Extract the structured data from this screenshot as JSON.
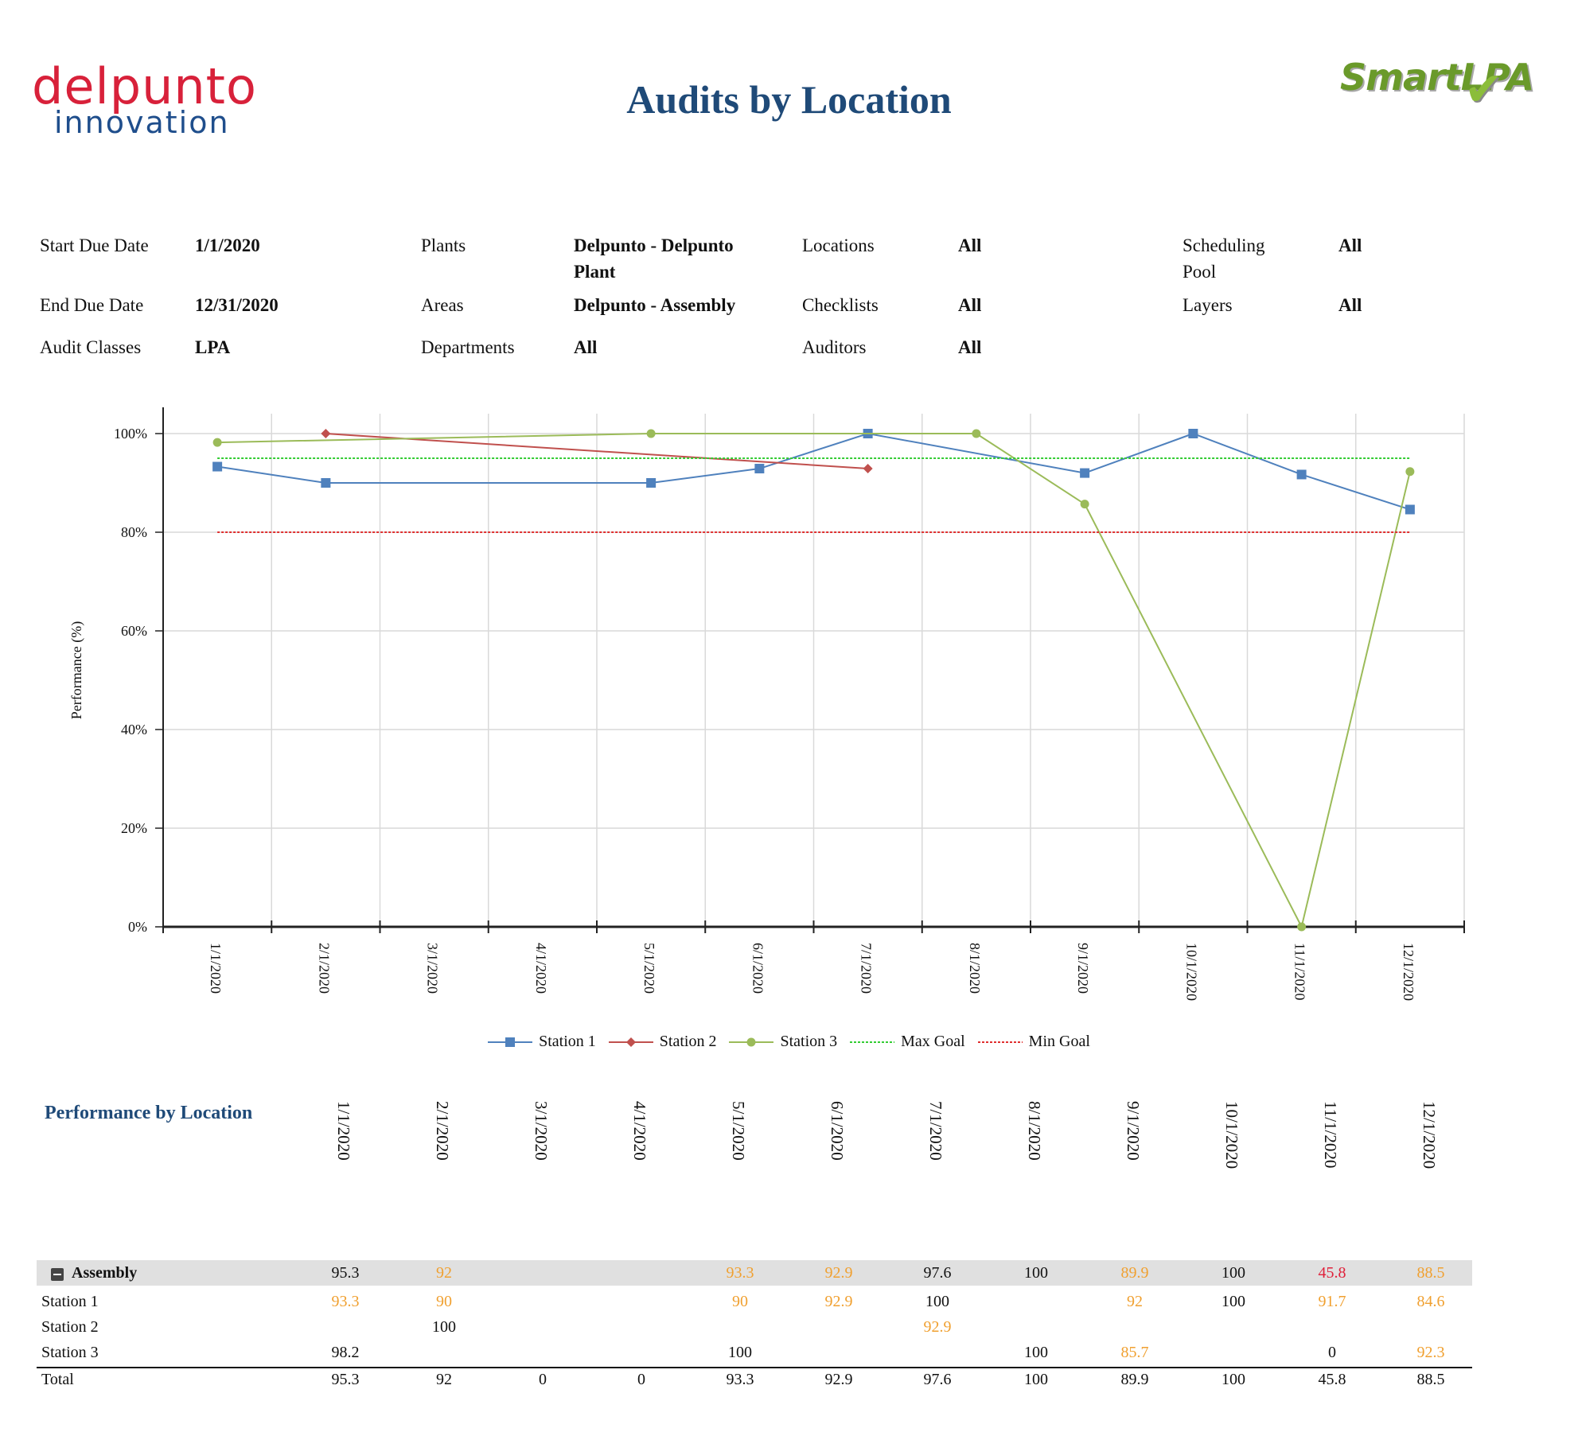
{
  "header": {
    "logo_delpunto_top": "delpunto",
    "logo_delpunto_bottom": "innovation",
    "title": "Audits by Location",
    "logo_smartlpa": "SmartLPA"
  },
  "filters": [
    {
      "label": "Start Due Date",
      "value": "1/1/2020"
    },
    {
      "label": "Plants",
      "value": "Delpunto - Delpunto Plant"
    },
    {
      "label": "Locations",
      "value": "All"
    },
    {
      "label": "Scheduling Pool",
      "value": "All"
    },
    {
      "label": "End Due Date",
      "value": "12/31/2020"
    },
    {
      "label": "Areas",
      "value": "Delpunto - Assembly"
    },
    {
      "label": "Checklists",
      "value": "All"
    },
    {
      "label": "Layers",
      "value": "All"
    },
    {
      "label": "Audit Classes",
      "value": "LPA"
    },
    {
      "label": "Departments",
      "value": "All"
    },
    {
      "label": "Auditors",
      "value": "All"
    }
  ],
  "chart_data": {
    "type": "line",
    "title": "",
    "ylabel": "Performance (%)",
    "xlabel": "",
    "ylim": [
      0,
      100
    ],
    "yticks": [
      "0%",
      "20%",
      "40%",
      "60%",
      "80%",
      "100%"
    ],
    "categories": [
      "1/1/2020",
      "2/1/2020",
      "3/1/2020",
      "4/1/2020",
      "5/1/2020",
      "6/1/2020",
      "7/1/2020",
      "8/1/2020",
      "9/1/2020",
      "10/1/2020",
      "11/1/2020",
      "12/1/2020"
    ],
    "grid": true,
    "legend_position": "bottom",
    "series": [
      {
        "name": "Station 1",
        "color": "#4f81bd",
        "marker": "square",
        "values": [
          93.3,
          90,
          null,
          null,
          90,
          92.9,
          100,
          null,
          92,
          100,
          91.7,
          84.6
        ]
      },
      {
        "name": "Station 2",
        "color": "#c0504d",
        "marker": "diamond",
        "values": [
          null,
          100,
          null,
          null,
          null,
          null,
          92.9,
          null,
          null,
          null,
          null,
          null
        ]
      },
      {
        "name": "Station 3",
        "color": "#9bbb59",
        "marker": "circle",
        "values": [
          98.2,
          null,
          null,
          null,
          100,
          null,
          null,
          100,
          85.7,
          null,
          0,
          92.3
        ]
      },
      {
        "name": "Max Goal",
        "color": "#33cc33",
        "dashed": true,
        "values": [
          95,
          95,
          95,
          95,
          95,
          95,
          95,
          95,
          95,
          95,
          95,
          95
        ]
      },
      {
        "name": "Min Goal",
        "color": "#e03030",
        "dashed": true,
        "values": [
          80,
          80,
          80,
          80,
          80,
          80,
          80,
          80,
          80,
          80,
          80,
          80
        ]
      }
    ]
  },
  "table": {
    "title": "Performance by Location",
    "columns": [
      "1/1/2020",
      "2/1/2020",
      "3/1/2020",
      "4/1/2020",
      "5/1/2020",
      "6/1/2020",
      "7/1/2020",
      "8/1/2020",
      "9/1/2020",
      "10/1/2020",
      "11/1/2020",
      "12/1/2020"
    ],
    "rows": [
      {
        "label": "Assembly",
        "group": true,
        "cells": [
          [
            "95.3",
            ""
          ],
          [
            "92",
            "orange"
          ],
          [
            "",
            ""
          ],
          [
            "",
            ""
          ],
          [
            "93.3",
            "orange"
          ],
          [
            "92.9",
            "orange"
          ],
          [
            "97.6",
            ""
          ],
          [
            "100",
            ""
          ],
          [
            "89.9",
            "orange"
          ],
          [
            "100",
            ""
          ],
          [
            "45.8",
            "red"
          ],
          [
            "88.5",
            "orange"
          ]
        ]
      },
      {
        "label": "Station 1",
        "cells": [
          [
            "93.3",
            "orange"
          ],
          [
            "90",
            "orange"
          ],
          [
            "",
            ""
          ],
          [
            "",
            ""
          ],
          [
            "90",
            "orange"
          ],
          [
            "92.9",
            "orange"
          ],
          [
            "100",
            ""
          ],
          [
            "",
            ""
          ],
          [
            "92",
            "orange"
          ],
          [
            "100",
            ""
          ],
          [
            "91.7",
            "orange"
          ],
          [
            "84.6",
            "orange"
          ]
        ]
      },
      {
        "label": "Station 2",
        "cells": [
          [
            "",
            ""
          ],
          [
            "100",
            ""
          ],
          [
            "",
            ""
          ],
          [
            "",
            ""
          ],
          [
            "",
            ""
          ],
          [
            "",
            ""
          ],
          [
            "92.9",
            "orange"
          ],
          [
            "",
            ""
          ],
          [
            "",
            ""
          ],
          [
            "",
            ""
          ],
          [
            "",
            ""
          ],
          [
            "",
            ""
          ]
        ]
      },
      {
        "label": "Station 3",
        "cells": [
          [
            "98.2",
            ""
          ],
          [
            "",
            ""
          ],
          [
            "",
            ""
          ],
          [
            "",
            ""
          ],
          [
            "100",
            ""
          ],
          [
            "",
            ""
          ],
          [
            "",
            ""
          ],
          [
            "100",
            ""
          ],
          [
            "85.7",
            "orange"
          ],
          [
            "",
            ""
          ],
          [
            "0",
            ""
          ],
          [
            "92.3",
            "orange"
          ]
        ]
      },
      {
        "label": "Total",
        "cells": [
          [
            "95.3",
            ""
          ],
          [
            "92",
            ""
          ],
          [
            "0",
            ""
          ],
          [
            "0",
            ""
          ],
          [
            "93.3",
            ""
          ],
          [
            "92.9",
            ""
          ],
          [
            "97.6",
            ""
          ],
          [
            "100",
            ""
          ],
          [
            "89.9",
            ""
          ],
          [
            "100",
            ""
          ],
          [
            "45.8",
            ""
          ],
          [
            "88.5",
            ""
          ]
        ]
      }
    ]
  }
}
